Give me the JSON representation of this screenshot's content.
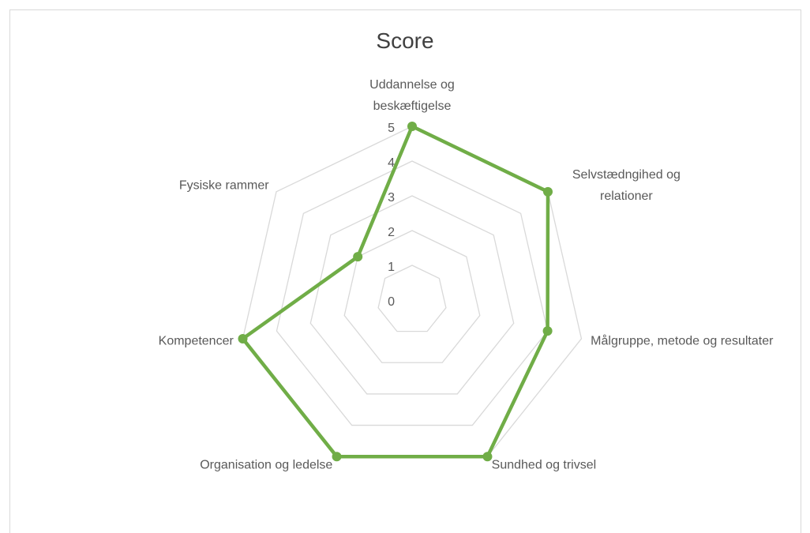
{
  "chart_data": {
    "type": "radar",
    "title": "Score",
    "categories": [
      "Uddannelse og beskæftigelse",
      "Selvstædngihed og relationer",
      "Målgruppe, metode og resultater",
      "Sundhed og trivsel",
      "Organisation og ledelse",
      "Kompetencer",
      "Fysiske rammer"
    ],
    "values": [
      5,
      5,
      4,
      5,
      5,
      5,
      2
    ],
    "color": "#70ad47",
    "rlim": [
      0,
      5
    ],
    "rticks": [
      0,
      1,
      2,
      3,
      4,
      5
    ],
    "grid": true
  }
}
